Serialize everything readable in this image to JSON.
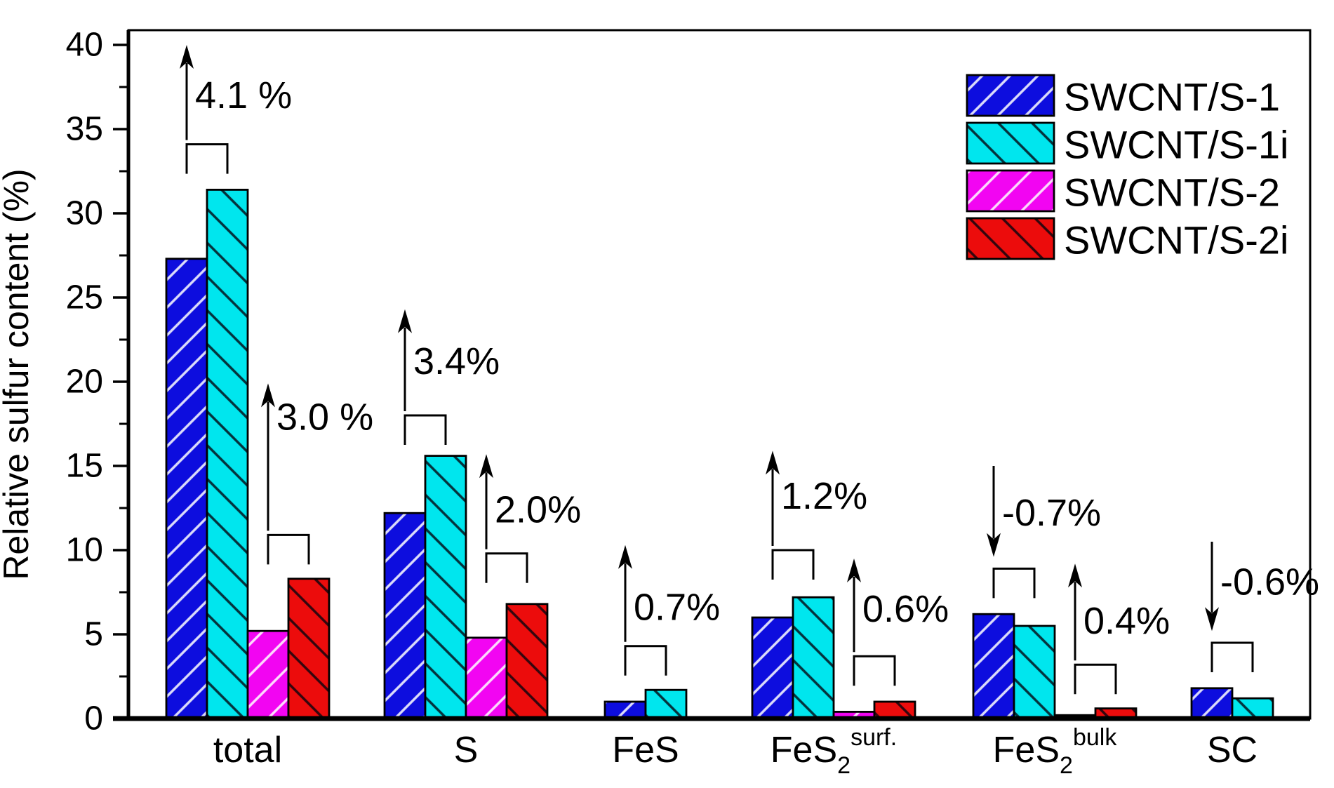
{
  "chart_data": {
    "type": "bar",
    "title": "",
    "xlabel": "",
    "ylabel": "Relative sulfur content (%)",
    "ylim": [
      0,
      40
    ],
    "ytick_interval": 5,
    "ytick_minor_interval": 2.5,
    "ytick_labels": [
      "0",
      "5",
      "10",
      "15",
      "20",
      "25",
      "30",
      "35",
      "40"
    ],
    "grid": false,
    "legend_position": "top-right",
    "categories": [
      {
        "text": "total",
        "sub": "",
        "sup": ""
      },
      {
        "text": "S",
        "sub": "",
        "sup": ""
      },
      {
        "text": "FeS",
        "sub": "",
        "sup": ""
      },
      {
        "text": "FeS",
        "sub": "2",
        "sup": "surf."
      },
      {
        "text": "FeS",
        "sub": "2",
        "sup": "bulk"
      },
      {
        "text": "SC",
        "sub": "",
        "sup": ""
      }
    ],
    "series": [
      {
        "name": "SWCNT/S-1",
        "color": "#0D0DDE",
        "hatch": "/",
        "values": [
          27.3,
          12.2,
          1.0,
          6.0,
          6.2,
          1.8
        ]
      },
      {
        "name": "SWCNT/S-1i",
        "color": "#00E6EE",
        "hatch": "\\",
        "values": [
          31.4,
          15.6,
          1.7,
          7.2,
          5.5,
          1.2
        ]
      },
      {
        "name": "SWCNT/S-2",
        "color": "#F205F2",
        "hatch": "/",
        "values": [
          5.2,
          4.8,
          null,
          0.4,
          0.2,
          null
        ]
      },
      {
        "name": "SWCNT/S-2i",
        "color": "#EC0C0C",
        "hatch": "\\",
        "values": [
          8.3,
          6.8,
          null,
          1.0,
          0.6,
          null
        ]
      }
    ],
    "annotations": [
      {
        "category": 0,
        "between": [
          0,
          1
        ],
        "label": "4.1 %",
        "direction": "up",
        "bracket_v": 34.1,
        "arrow_tip_v": 40.0,
        "text_v": 37.0
      },
      {
        "category": 0,
        "between": [
          2,
          3
        ],
        "label": "3.0 %",
        "direction": "up",
        "bracket_v": 10.9,
        "arrow_tip_v": 19.9,
        "text_v": 17.9
      },
      {
        "category": 1,
        "between": [
          0,
          1
        ],
        "label": "3.4%",
        "direction": "up",
        "bracket_v": 18.0,
        "arrow_tip_v": 24.3,
        "text_v": 21.2
      },
      {
        "category": 1,
        "between": [
          2,
          3
        ],
        "label": "2.0%",
        "direction": "up",
        "bracket_v": 9.8,
        "arrow_tip_v": 15.7,
        "text_v": 12.4
      },
      {
        "category": 2,
        "between": [
          0,
          1
        ],
        "label": "0.7%",
        "direction": "up",
        "bracket_v": 4.3,
        "arrow_tip_v": 10.3,
        "text_v": 6.6
      },
      {
        "category": 3,
        "between": [
          0,
          1
        ],
        "label": "1.2%",
        "direction": "up",
        "bracket_v": 10.0,
        "arrow_tip_v": 15.9,
        "text_v": 13.2
      },
      {
        "category": 3,
        "between": [
          2,
          3
        ],
        "label": "0.6%",
        "direction": "up",
        "bracket_v": 3.7,
        "arrow_tip_v": 9.5,
        "text_v": 6.5
      },
      {
        "category": 4,
        "between": [
          0,
          1
        ],
        "label": "-0.7%",
        "direction": "down",
        "bracket_v": 8.9,
        "arrow_start_v": 15.0,
        "arrow_tip_v": 9.6,
        "text_v": 12.2
      },
      {
        "category": 4,
        "between": [
          2,
          3
        ],
        "label": "0.4%",
        "direction": "up",
        "bracket_v": 3.2,
        "arrow_tip_v": 9.2,
        "text_v": 5.8
      },
      {
        "category": 5,
        "between": [
          0,
          1
        ],
        "label": "-0.6%",
        "direction": "down",
        "bracket_v": 4.5,
        "arrow_start_v": 10.5,
        "arrow_tip_v": 5.2,
        "text_v": 8.1
      }
    ]
  }
}
